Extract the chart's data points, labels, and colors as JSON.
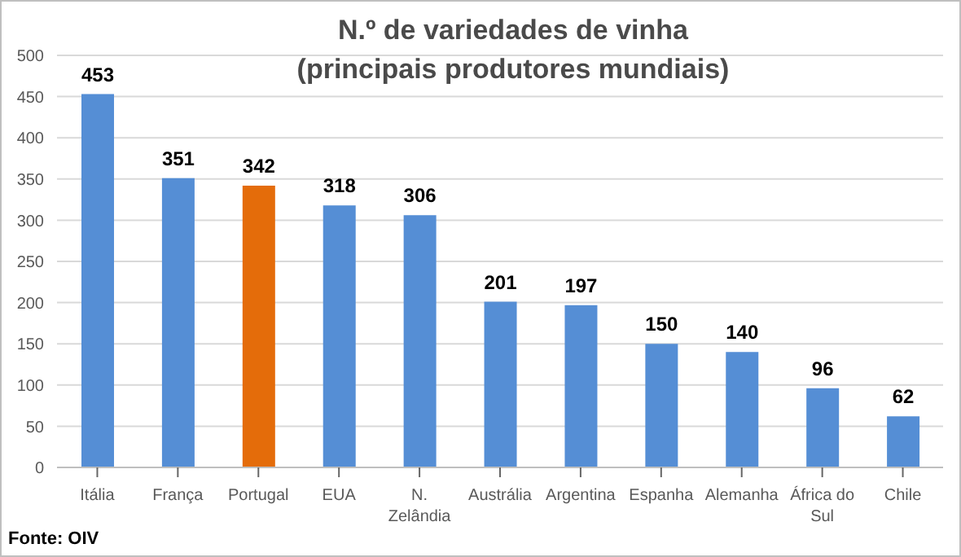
{
  "chart_data": {
    "type": "bar",
    "title": "N.º de variedades de vinha\n(principais produtores mundiais)",
    "categories": [
      "Itália",
      "França",
      "Portugal",
      "EUA",
      "N. Zelândia",
      "Austrália",
      "Argentina",
      "Espanha",
      "Alemanha",
      "África do Sul",
      "Chile"
    ],
    "values": [
      453,
      351,
      342,
      318,
      306,
      201,
      197,
      150,
      140,
      96,
      62
    ],
    "colors": [
      "#558ed5",
      "#558ed5",
      "#e46c0a",
      "#558ed5",
      "#558ed5",
      "#558ed5",
      "#558ed5",
      "#558ed5",
      "#558ed5",
      "#558ed5",
      "#558ed5"
    ],
    "ylim": [
      0,
      500
    ],
    "yticks": [
      0,
      50,
      100,
      150,
      200,
      250,
      300,
      350,
      400,
      450,
      500
    ],
    "grid": "y",
    "data_labels": true,
    "annotations": [
      "Fonte: OIV"
    ]
  }
}
